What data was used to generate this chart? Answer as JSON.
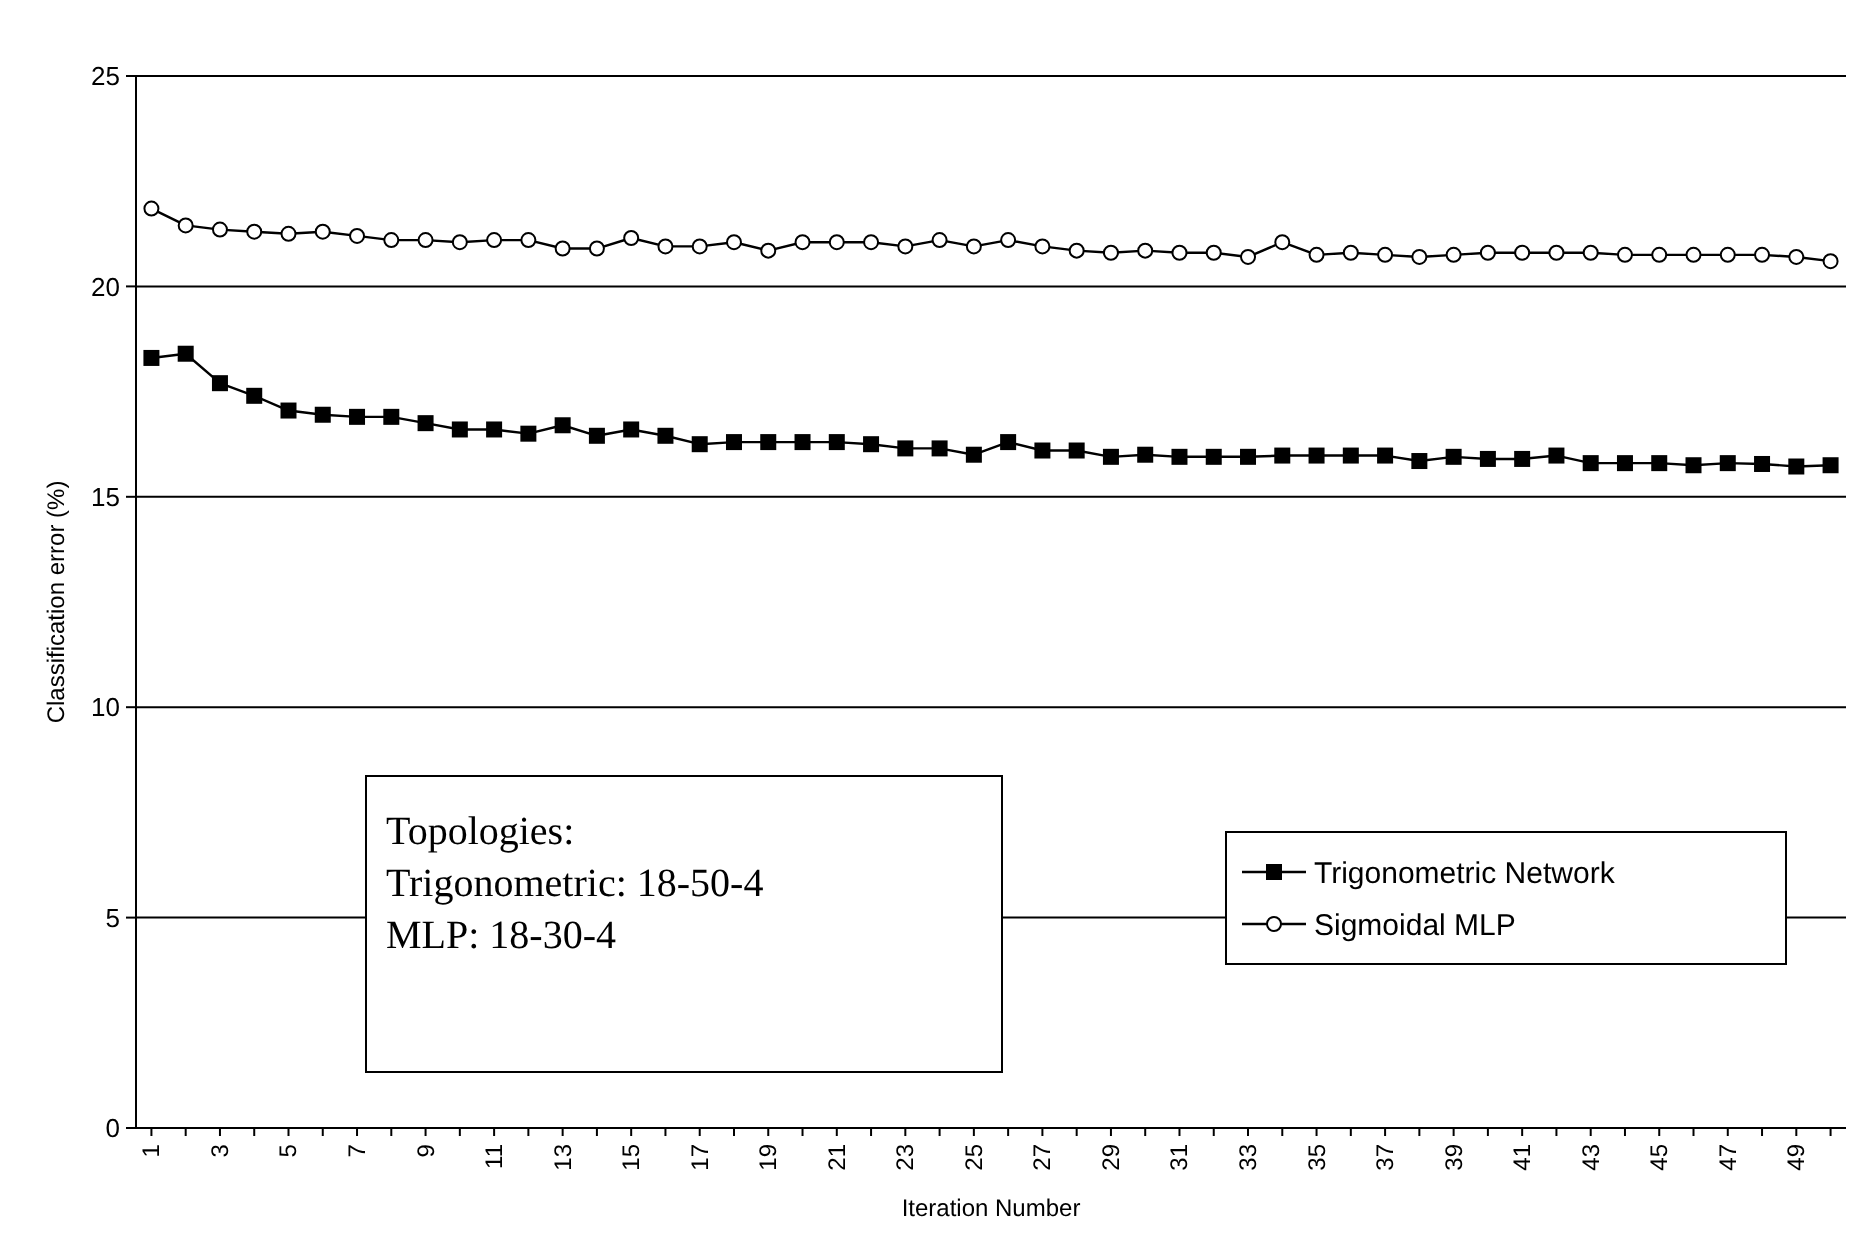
{
  "chart_data": {
    "type": "line",
    "xlabel": "Iteration Number",
    "ylabel": "Classification error (%)",
    "categories": [
      "1",
      null,
      "3",
      null,
      "5",
      null,
      "7",
      null,
      "9",
      null,
      "11",
      null,
      "13",
      null,
      "15",
      null,
      "17",
      null,
      "19",
      null,
      "21",
      null,
      "23",
      null,
      "25",
      null,
      "27",
      null,
      "29",
      null,
      "31",
      null,
      "33",
      null,
      "35",
      null,
      "37",
      null,
      "39",
      null,
      "41",
      null,
      "43",
      null,
      "45",
      null,
      "47",
      null,
      "49",
      null
    ],
    "series": [
      {
        "name": "Trigonometric Network",
        "color": "#000000",
        "marker": "square",
        "values": [
          18.3,
          18.4,
          17.7,
          17.4,
          17.05,
          16.95,
          16.9,
          16.9,
          16.75,
          16.6,
          16.6,
          16.5,
          16.7,
          16.45,
          16.6,
          16.45,
          16.25,
          16.3,
          16.3,
          16.3,
          16.3,
          16.25,
          16.15,
          16.15,
          16.0,
          16.3,
          16.1,
          16.1,
          15.95,
          16.0,
          15.95,
          15.95,
          15.95,
          15.98,
          15.98,
          15.98,
          15.98,
          15.85,
          15.95,
          15.9,
          15.9,
          15.98,
          15.8,
          15.8,
          15.8,
          15.75,
          15.8,
          15.78,
          15.72,
          15.75
        ]
      },
      {
        "name": "Sigmoidal MLP",
        "color": "#000000",
        "marker": "circle",
        "values": [
          21.85,
          21.45,
          21.35,
          21.3,
          21.25,
          21.3,
          21.2,
          21.1,
          21.1,
          21.05,
          21.1,
          21.1,
          20.9,
          20.9,
          21.15,
          20.95,
          20.95,
          21.05,
          20.85,
          21.05,
          21.05,
          21.05,
          20.95,
          21.1,
          20.95,
          21.1,
          20.95,
          20.85,
          20.8,
          20.85,
          20.8,
          20.8,
          20.7,
          21.05,
          20.75,
          20.8,
          20.75,
          20.7,
          20.75,
          20.8,
          20.8,
          20.8,
          20.8,
          20.75,
          20.75,
          20.75,
          20.75,
          20.75,
          20.7,
          20.6
        ]
      }
    ],
    "ylim": [
      0,
      25
    ],
    "yticks": [
      0,
      5,
      10,
      15,
      20,
      25
    ],
    "grid": "y",
    "legend": "bottom right",
    "line_style": "solid",
    "annotations": [
      "Topologies:",
      "Trigonometric: 18-50-4",
      "MLP: 18-30-4"
    ]
  }
}
